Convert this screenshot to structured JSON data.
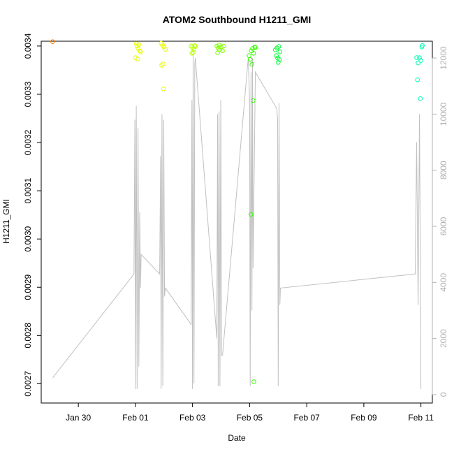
{
  "chart_data": {
    "type": "scatter",
    "title": "ATOM2 Southbound H1211_GMI",
    "xlabel": "Date",
    "ylabel": "H1211_GMI",
    "x_ticks": [
      "Jan 30",
      "Feb 01",
      "Feb 03",
      "Feb 05",
      "Feb 07",
      "Feb 09",
      "Feb 11"
    ],
    "x_tick_days": [
      30,
      32,
      34,
      36,
      38,
      40,
      42
    ],
    "xlim": [
      28.7,
      42.4
    ],
    "ylim_left": [
      0.00266,
      0.00341
    ],
    "ylim_right": [
      -300,
      12600
    ],
    "y_ticks_left": [
      "0.0027",
      "0.0028",
      "0.0029",
      "0.0030",
      "0.0031",
      "0.0032",
      "0.0033",
      "0.0034"
    ],
    "y_tick_values_left": [
      0.0027,
      0.0028,
      0.0029,
      0.003,
      0.0031,
      0.0032,
      0.0033,
      0.0034
    ],
    "y_ticks_right": [
      "0",
      "2000",
      "4000",
      "6000",
      "8000",
      "10000",
      "12000"
    ],
    "y_tick_values_right": [
      0,
      2000,
      4000,
      6000,
      8000,
      10000,
      12000
    ],
    "grid": false,
    "series": [
      {
        "kind": "points",
        "axis": "left",
        "points": [
          {
            "x": 29.1,
            "y": 0.003409,
            "color": "#ff8000"
          },
          {
            "x": 32.03,
            "y": 0.003405,
            "color": "#e6ff00"
          },
          {
            "x": 32.06,
            "y": 0.0034,
            "color": "#e6ff00"
          },
          {
            "x": 32.09,
            "y": 0.003395,
            "color": "#e6ff00"
          },
          {
            "x": 32.12,
            "y": 0.003403,
            "color": "#e6ff00"
          },
          {
            "x": 32.15,
            "y": 0.00339,
            "color": "#e6ff00"
          },
          {
            "x": 32.0,
            "y": 0.003376,
            "color": "#e6ff00"
          },
          {
            "x": 32.08,
            "y": 0.003373,
            "color": "#e6ff00"
          },
          {
            "x": 32.18,
            "y": 0.003388,
            "color": "#e6ff00"
          },
          {
            "x": 32.9,
            "y": 0.003406,
            "color": "#e6ff00"
          },
          {
            "x": 32.95,
            "y": 0.003402,
            "color": "#e6ff00"
          },
          {
            "x": 33.0,
            "y": 0.003398,
            "color": "#e6ff00"
          },
          {
            "x": 33.05,
            "y": 0.003393,
            "color": "#e6ff00"
          },
          {
            "x": 32.92,
            "y": 0.00336,
            "color": "#e6ff00"
          },
          {
            "x": 32.97,
            "y": 0.003363,
            "color": "#e6ff00"
          },
          {
            "x": 32.98,
            "y": 0.003311,
            "color": "#e6ff00"
          },
          {
            "x": 33.95,
            "y": 0.0034,
            "color": "#b3ff00"
          },
          {
            "x": 34.0,
            "y": 0.003397,
            "color": "#b3ff00"
          },
          {
            "x": 34.05,
            "y": 0.003393,
            "color": "#b3ff00"
          },
          {
            "x": 34.1,
            "y": 0.003399,
            "color": "#b3ff00"
          },
          {
            "x": 34.02,
            "y": 0.003387,
            "color": "#b3ff00"
          },
          {
            "x": 34.08,
            "y": 0.003401,
            "color": "#b3ff00"
          },
          {
            "x": 33.98,
            "y": 0.003385,
            "color": "#b3ff00"
          },
          {
            "x": 34.85,
            "y": 0.0034,
            "color": "#80ff00"
          },
          {
            "x": 34.9,
            "y": 0.003396,
            "color": "#80ff00"
          },
          {
            "x": 34.95,
            "y": 0.003392,
            "color": "#80ff00"
          },
          {
            "x": 35.0,
            "y": 0.003398,
            "color": "#80ff00"
          },
          {
            "x": 35.05,
            "y": 0.00339,
            "color": "#80ff00"
          },
          {
            "x": 34.88,
            "y": 0.003386,
            "color": "#80ff00"
          },
          {
            "x": 34.93,
            "y": 0.003402,
            "color": "#80ff00"
          },
          {
            "x": 35.08,
            "y": 0.0034,
            "color": "#80ff00"
          },
          {
            "x": 35.98,
            "y": 0.00338,
            "color": "#33ff00"
          },
          {
            "x": 36.02,
            "y": 0.003372,
            "color": "#33ff00"
          },
          {
            "x": 36.06,
            "y": 0.00339,
            "color": "#33ff00"
          },
          {
            "x": 36.1,
            "y": 0.003395,
            "color": "#33ff00"
          },
          {
            "x": 36.14,
            "y": 0.003385,
            "color": "#33ff00"
          },
          {
            "x": 36.18,
            "y": 0.003398,
            "color": "#33ff00"
          },
          {
            "x": 36.08,
            "y": 0.003362,
            "color": "#33ff00"
          },
          {
            "x": 36.2,
            "y": 0.003397,
            "color": "#33ff00"
          },
          {
            "x": 36.12,
            "y": 0.003287,
            "color": "#33ff00"
          },
          {
            "x": 36.05,
            "y": 0.003051,
            "color": "#33ff00"
          },
          {
            "x": 36.15,
            "y": 0.002704,
            "color": "#33ff00"
          },
          {
            "x": 36.9,
            "y": 0.003392,
            "color": "#00ff33"
          },
          {
            "x": 36.94,
            "y": 0.00338,
            "color": "#00ff33"
          },
          {
            "x": 36.98,
            "y": 0.003375,
            "color": "#00ff33"
          },
          {
            "x": 37.02,
            "y": 0.003399,
            "color": "#00ff33"
          },
          {
            "x": 37.06,
            "y": 0.003388,
            "color": "#00ff33"
          },
          {
            "x": 37.0,
            "y": 0.003366,
            "color": "#00ff33"
          },
          {
            "x": 37.04,
            "y": 0.003372,
            "color": "#00ff33"
          },
          {
            "x": 36.96,
            "y": 0.003396,
            "color": "#00ff33"
          },
          {
            "x": 41.85,
            "y": 0.003376,
            "color": "#00ffb3"
          },
          {
            "x": 41.9,
            "y": 0.003365,
            "color": "#00ffb3"
          },
          {
            "x": 41.95,
            "y": 0.003376,
            "color": "#00ffb3"
          },
          {
            "x": 42.0,
            "y": 0.00337,
            "color": "#00ffb3"
          },
          {
            "x": 42.03,
            "y": 0.003398,
            "color": "#00ffb3"
          },
          {
            "x": 42.05,
            "y": 0.003401,
            "color": "#00ffb3"
          },
          {
            "x": 41.88,
            "y": 0.00333,
            "color": "#00ffb3"
          },
          {
            "x": 41.98,
            "y": 0.003291,
            "color": "#00ffb3"
          }
        ]
      },
      {
        "kind": "line",
        "axis": "right",
        "color": "#c0c0c0",
        "points": [
          [
            29.1,
            600
          ],
          [
            31.95,
            4300
          ],
          [
            31.98,
            9800
          ],
          [
            32.0,
            200
          ],
          [
            32.03,
            10300
          ],
          [
            32.06,
            200
          ],
          [
            32.09,
            9500
          ],
          [
            32.12,
            1000
          ],
          [
            32.15,
            6500
          ],
          [
            32.18,
            3800
          ],
          [
            32.2,
            5000
          ],
          [
            32.85,
            4300
          ],
          [
            32.88,
            8500
          ],
          [
            32.9,
            200
          ],
          [
            32.93,
            10000
          ],
          [
            32.96,
            300
          ],
          [
            32.99,
            9800
          ],
          [
            33.02,
            3500
          ],
          [
            33.05,
            3800
          ],
          [
            33.95,
            2500
          ],
          [
            33.98,
            10500
          ],
          [
            34.0,
            200
          ],
          [
            34.02,
            12100
          ],
          [
            34.05,
            400
          ],
          [
            34.08,
            11800
          ],
          [
            34.1,
            12000
          ],
          [
            34.85,
            2000
          ],
          [
            34.88,
            10000
          ],
          [
            34.9,
            300
          ],
          [
            34.93,
            10100
          ],
          [
            34.96,
            300
          ],
          [
            34.99,
            10500
          ],
          [
            35.02,
            1400
          ],
          [
            35.05,
            1400
          ],
          [
            35.95,
            12000
          ],
          [
            36.0,
            10500
          ],
          [
            36.02,
            300
          ],
          [
            36.05,
            11500
          ],
          [
            36.08,
            3000
          ],
          [
            36.1,
            12000
          ],
          [
            36.12,
            4500
          ],
          [
            36.2,
            11500
          ],
          [
            36.95,
            10200
          ],
          [
            36.98,
            9800
          ],
          [
            37.0,
            300
          ],
          [
            37.03,
            10400
          ],
          [
            37.06,
            3200
          ],
          [
            37.08,
            3800
          ],
          [
            41.8,
            4300
          ],
          [
            41.85,
            9000
          ],
          [
            41.9,
            3200
          ],
          [
            41.95,
            10000
          ],
          [
            42.0,
            200
          ]
        ]
      }
    ]
  }
}
